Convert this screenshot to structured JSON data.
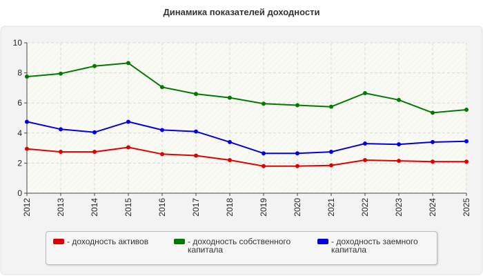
{
  "chart_data": {
    "type": "line",
    "title": "Динамика показателей доходности",
    "x": [
      "2012",
      "2013",
      "2014",
      "2015",
      "2016",
      "2017",
      "2018",
      "2019",
      "2020",
      "2021",
      "2022",
      "2023",
      "2024",
      "2025"
    ],
    "ylim": [
      0,
      10
    ],
    "yticks": [
      0,
      2,
      4,
      6,
      8,
      10
    ],
    "grid": true,
    "legend_position": "bottom",
    "series": [
      {
        "name": "- доходность активов",
        "color": "#e00000",
        "values": [
          2.95,
          2.75,
          2.75,
          3.05,
          2.6,
          2.5,
          2.2,
          1.8,
          1.8,
          1.85,
          2.2,
          2.15,
          2.1,
          2.1
        ]
      },
      {
        "name": "- доходность собственного капитала",
        "color": "#007a00",
        "values": [
          7.75,
          7.95,
          8.45,
          8.65,
          7.05,
          6.6,
          6.35,
          5.95,
          5.85,
          5.75,
          6.65,
          6.2,
          5.35,
          5.55
        ]
      },
      {
        "name": "- доходность заемного капитала",
        "color": "#0000e0",
        "values": [
          4.75,
          4.25,
          4.05,
          4.75,
          4.2,
          4.1,
          3.4,
          2.65,
          2.65,
          2.75,
          3.3,
          3.25,
          3.4,
          3.45
        ]
      }
    ]
  }
}
